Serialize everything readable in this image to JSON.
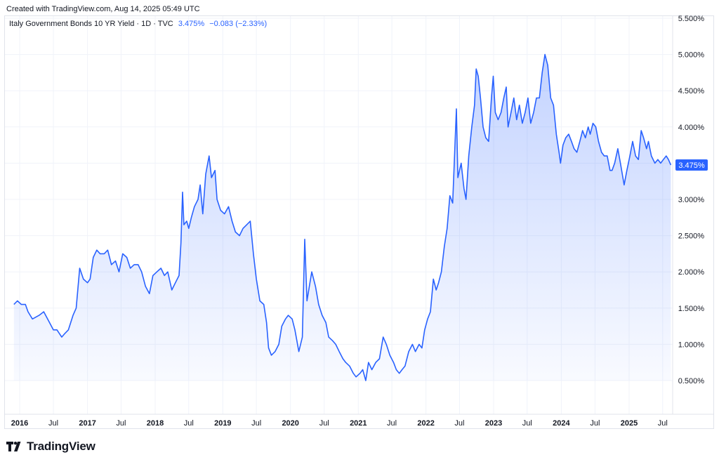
{
  "header": {
    "created": "Created with TradingView.com, Aug 14, 2025 05:49 UTC"
  },
  "legend": {
    "symbol": "Italy Government Bonds 10 YR Yield · 1D · TVC",
    "last": "3.475%",
    "change": "−0.083 (−2.33%)"
  },
  "brand": {
    "name": "TradingView",
    "icon": "tradingview-logo-icon"
  },
  "colors": {
    "line": "#2962ff",
    "badge": "#2962ff",
    "fill_top": "#c9d6ff"
  },
  "chart_data": {
    "type": "area",
    "title": "Italy Government Bonds 10 YR Yield · 1D · TVC",
    "ylabel": "",
    "xlabel": "",
    "y_unit": "%",
    "ylim": [
      0.5,
      5.5
    ],
    "x_range": [
      "2015-12-01",
      "2025-08-14"
    ],
    "y_ticks": [
      "0.500%",
      "1.000%",
      "1.500%",
      "2.000%",
      "2.500%",
      "3.000%",
      "3.500%",
      "4.000%",
      "4.500%",
      "5.000%",
      "5.500%"
    ],
    "x_ticks": [
      {
        "label": "2016",
        "date": "2016-01-01",
        "bold": true
      },
      {
        "label": "Jul",
        "date": "2016-07-01",
        "bold": false
      },
      {
        "label": "2017",
        "date": "2017-01-01",
        "bold": true
      },
      {
        "label": "Jul",
        "date": "2017-07-01",
        "bold": false
      },
      {
        "label": "2018",
        "date": "2018-01-01",
        "bold": true
      },
      {
        "label": "Jul",
        "date": "2018-07-01",
        "bold": false
      },
      {
        "label": "2019",
        "date": "2019-01-01",
        "bold": true
      },
      {
        "label": "Jul",
        "date": "2019-07-01",
        "bold": false
      },
      {
        "label": "2020",
        "date": "2020-01-01",
        "bold": true
      },
      {
        "label": "Jul",
        "date": "2020-07-01",
        "bold": false
      },
      {
        "label": "2021",
        "date": "2021-01-01",
        "bold": true
      },
      {
        "label": "Jul",
        "date": "2021-07-01",
        "bold": false
      },
      {
        "label": "2022",
        "date": "2022-01-01",
        "bold": true
      },
      {
        "label": "Jul",
        "date": "2022-07-01",
        "bold": false
      },
      {
        "label": "2023",
        "date": "2023-01-01",
        "bold": true
      },
      {
        "label": "Jul",
        "date": "2023-07-01",
        "bold": false
      },
      {
        "label": "2024",
        "date": "2024-01-01",
        "bold": true
      },
      {
        "label": "Jul",
        "date": "2024-07-01",
        "bold": false
      },
      {
        "label": "2025",
        "date": "2025-01-01",
        "bold": true
      },
      {
        "label": "Jul",
        "date": "2025-07-01",
        "bold": false
      }
    ],
    "last_value_label": "3.475%",
    "grid": true,
    "series": [
      {
        "points": [
          [
            "2015-12-01",
            1.55
          ],
          [
            "2015-12-20",
            1.6
          ],
          [
            "2016-01-10",
            1.55
          ],
          [
            "2016-02-01",
            1.55
          ],
          [
            "2016-02-15",
            1.45
          ],
          [
            "2016-03-10",
            1.35
          ],
          [
            "2016-04-15",
            1.4
          ],
          [
            "2016-05-10",
            1.45
          ],
          [
            "2016-06-10",
            1.3
          ],
          [
            "2016-07-01",
            1.2
          ],
          [
            "2016-07-20",
            1.2
          ],
          [
            "2016-08-15",
            1.1
          ],
          [
            "2016-09-01",
            1.15
          ],
          [
            "2016-09-20",
            1.2
          ],
          [
            "2016-10-15",
            1.4
          ],
          [
            "2016-11-01",
            1.5
          ],
          [
            "2016-11-20",
            2.05
          ],
          [
            "2016-12-10",
            1.9
          ],
          [
            "2017-01-01",
            1.85
          ],
          [
            "2017-01-15",
            1.9
          ],
          [
            "2017-02-01",
            2.2
          ],
          [
            "2017-02-20",
            2.3
          ],
          [
            "2017-03-10",
            2.25
          ],
          [
            "2017-04-01",
            2.25
          ],
          [
            "2017-04-20",
            2.3
          ],
          [
            "2017-05-10",
            2.1
          ],
          [
            "2017-06-01",
            2.15
          ],
          [
            "2017-06-20",
            2.0
          ],
          [
            "2017-07-10",
            2.25
          ],
          [
            "2017-08-01",
            2.2
          ],
          [
            "2017-08-20",
            2.05
          ],
          [
            "2017-09-10",
            2.1
          ],
          [
            "2017-10-01",
            2.1
          ],
          [
            "2017-10-20",
            2.0
          ],
          [
            "2017-11-10",
            1.8
          ],
          [
            "2017-12-01",
            1.7
          ],
          [
            "2017-12-20",
            1.95
          ],
          [
            "2018-01-10",
            2.0
          ],
          [
            "2018-02-01",
            2.05
          ],
          [
            "2018-02-20",
            1.95
          ],
          [
            "2018-03-10",
            2.0
          ],
          [
            "2018-04-01",
            1.75
          ],
          [
            "2018-04-20",
            1.85
          ],
          [
            "2018-05-10",
            1.95
          ],
          [
            "2018-05-20",
            2.4
          ],
          [
            "2018-05-29",
            3.1
          ],
          [
            "2018-06-05",
            2.65
          ],
          [
            "2018-06-20",
            2.7
          ],
          [
            "2018-07-01",
            2.6
          ],
          [
            "2018-07-15",
            2.75
          ],
          [
            "2018-08-01",
            2.9
          ],
          [
            "2018-08-20",
            3.0
          ],
          [
            "2018-09-01",
            3.2
          ],
          [
            "2018-09-15",
            2.8
          ],
          [
            "2018-10-01",
            3.35
          ],
          [
            "2018-10-19",
            3.6
          ],
          [
            "2018-11-01",
            3.3
          ],
          [
            "2018-11-20",
            3.4
          ],
          [
            "2018-12-01",
            3.0
          ],
          [
            "2018-12-20",
            2.85
          ],
          [
            "2019-01-10",
            2.8
          ],
          [
            "2019-02-01",
            2.9
          ],
          [
            "2019-02-20",
            2.7
          ],
          [
            "2019-03-10",
            2.55
          ],
          [
            "2019-04-01",
            2.5
          ],
          [
            "2019-04-20",
            2.6
          ],
          [
            "2019-05-10",
            2.65
          ],
          [
            "2019-05-29",
            2.7
          ],
          [
            "2019-06-15",
            2.25
          ],
          [
            "2019-07-01",
            1.9
          ],
          [
            "2019-07-20",
            1.6
          ],
          [
            "2019-08-10",
            1.55
          ],
          [
            "2019-08-25",
            1.3
          ],
          [
            "2019-09-05",
            0.95
          ],
          [
            "2019-09-20",
            0.85
          ],
          [
            "2019-10-10",
            0.9
          ],
          [
            "2019-10-30",
            1.0
          ],
          [
            "2019-11-15",
            1.25
          ],
          [
            "2019-12-05",
            1.35
          ],
          [
            "2019-12-20",
            1.4
          ],
          [
            "2020-01-10",
            1.35
          ],
          [
            "2020-01-25",
            1.2
          ],
          [
            "2020-02-15",
            0.9
          ],
          [
            "2020-03-05",
            1.1
          ],
          [
            "2020-03-18",
            2.45
          ],
          [
            "2020-03-30",
            1.6
          ],
          [
            "2020-04-15",
            1.85
          ],
          [
            "2020-04-25",
            2.0
          ],
          [
            "2020-05-15",
            1.8
          ],
          [
            "2020-06-01",
            1.55
          ],
          [
            "2020-06-20",
            1.4
          ],
          [
            "2020-07-10",
            1.3
          ],
          [
            "2020-07-25",
            1.1
          ],
          [
            "2020-08-15",
            1.05
          ],
          [
            "2020-09-01",
            1.0
          ],
          [
            "2020-09-20",
            0.9
          ],
          [
            "2020-10-10",
            0.8
          ],
          [
            "2020-10-25",
            0.75
          ],
          [
            "2020-11-15",
            0.7
          ],
          [
            "2020-12-05",
            0.6
          ],
          [
            "2020-12-20",
            0.55
          ],
          [
            "2021-01-10",
            0.6
          ],
          [
            "2021-01-25",
            0.65
          ],
          [
            "2021-02-10",
            0.5
          ],
          [
            "2021-02-25",
            0.75
          ],
          [
            "2021-03-15",
            0.65
          ],
          [
            "2021-04-05",
            0.75
          ],
          [
            "2021-04-25",
            0.8
          ],
          [
            "2021-05-15",
            1.1
          ],
          [
            "2021-06-01",
            1.0
          ],
          [
            "2021-06-20",
            0.85
          ],
          [
            "2021-07-10",
            0.75
          ],
          [
            "2021-07-25",
            0.65
          ],
          [
            "2021-08-10",
            0.6
          ],
          [
            "2021-08-25",
            0.65
          ],
          [
            "2021-09-10",
            0.7
          ],
          [
            "2021-09-30",
            0.9
          ],
          [
            "2021-10-20",
            1.0
          ],
          [
            "2021-11-05",
            0.9
          ],
          [
            "2021-11-25",
            1.0
          ],
          [
            "2021-12-10",
            0.95
          ],
          [
            "2021-12-25",
            1.2
          ],
          [
            "2022-01-10",
            1.35
          ],
          [
            "2022-01-25",
            1.45
          ],
          [
            "2022-02-10",
            1.9
          ],
          [
            "2022-02-25",
            1.75
          ],
          [
            "2022-03-10",
            1.85
          ],
          [
            "2022-03-25",
            2.0
          ],
          [
            "2022-04-10",
            2.35
          ],
          [
            "2022-04-25",
            2.6
          ],
          [
            "2022-05-10",
            3.05
          ],
          [
            "2022-05-25",
            2.95
          ],
          [
            "2022-06-14",
            4.25
          ],
          [
            "2022-06-22",
            3.3
          ],
          [
            "2022-07-10",
            3.5
          ],
          [
            "2022-07-25",
            3.15
          ],
          [
            "2022-08-05",
            3.0
          ],
          [
            "2022-08-20",
            3.6
          ],
          [
            "2022-09-05",
            4.0
          ],
          [
            "2022-09-20",
            4.3
          ],
          [
            "2022-09-29",
            4.8
          ],
          [
            "2022-10-10",
            4.7
          ],
          [
            "2022-10-22",
            4.4
          ],
          [
            "2022-11-05",
            4.0
          ],
          [
            "2022-11-20",
            3.85
          ],
          [
            "2022-12-05",
            3.8
          ],
          [
            "2022-12-20",
            4.4
          ],
          [
            "2022-12-30",
            4.7
          ],
          [
            "2023-01-10",
            4.2
          ],
          [
            "2023-01-25",
            4.1
          ],
          [
            "2023-02-10",
            4.2
          ],
          [
            "2023-02-25",
            4.4
          ],
          [
            "2023-03-10",
            4.55
          ],
          [
            "2023-03-20",
            4.0
          ],
          [
            "2023-04-05",
            4.2
          ],
          [
            "2023-04-20",
            4.4
          ],
          [
            "2023-05-05",
            4.1
          ],
          [
            "2023-05-20",
            4.3
          ],
          [
            "2023-06-05",
            4.05
          ],
          [
            "2023-06-20",
            4.2
          ],
          [
            "2023-07-05",
            4.4
          ],
          [
            "2023-07-20",
            4.05
          ],
          [
            "2023-08-05",
            4.2
          ],
          [
            "2023-08-20",
            4.4
          ],
          [
            "2023-09-05",
            4.4
          ],
          [
            "2023-09-20",
            4.75
          ],
          [
            "2023-10-05",
            5.0
          ],
          [
            "2023-10-20",
            4.85
          ],
          [
            "2023-11-05",
            4.4
          ],
          [
            "2023-11-20",
            4.3
          ],
          [
            "2023-12-05",
            3.9
          ],
          [
            "2023-12-20",
            3.65
          ],
          [
            "2023-12-28",
            3.5
          ],
          [
            "2024-01-10",
            3.75
          ],
          [
            "2024-01-25",
            3.85
          ],
          [
            "2024-02-10",
            3.9
          ],
          [
            "2024-02-25",
            3.8
          ],
          [
            "2024-03-10",
            3.7
          ],
          [
            "2024-03-25",
            3.65
          ],
          [
            "2024-04-10",
            3.8
          ],
          [
            "2024-04-25",
            3.95
          ],
          [
            "2024-05-10",
            3.85
          ],
          [
            "2024-05-25",
            4.0
          ],
          [
            "2024-06-05",
            3.9
          ],
          [
            "2024-06-20",
            4.05
          ],
          [
            "2024-07-05",
            4.0
          ],
          [
            "2024-07-20",
            3.8
          ],
          [
            "2024-08-05",
            3.65
          ],
          [
            "2024-08-20",
            3.6
          ],
          [
            "2024-09-05",
            3.6
          ],
          [
            "2024-09-20",
            3.4
          ],
          [
            "2024-10-01",
            3.4
          ],
          [
            "2024-10-15",
            3.5
          ],
          [
            "2024-11-01",
            3.7
          ],
          [
            "2024-11-15",
            3.5
          ],
          [
            "2024-12-05",
            3.2
          ],
          [
            "2024-12-20",
            3.4
          ],
          [
            "2025-01-05",
            3.6
          ],
          [
            "2025-01-20",
            3.8
          ],
          [
            "2025-02-05",
            3.6
          ],
          [
            "2025-02-20",
            3.55
          ],
          [
            "2025-03-07",
            3.95
          ],
          [
            "2025-03-20",
            3.85
          ],
          [
            "2025-04-05",
            3.7
          ],
          [
            "2025-04-15",
            3.8
          ],
          [
            "2025-05-01",
            3.6
          ],
          [
            "2025-05-20",
            3.5
          ],
          [
            "2025-06-05",
            3.55
          ],
          [
            "2025-06-20",
            3.5
          ],
          [
            "2025-07-05",
            3.55
          ],
          [
            "2025-07-20",
            3.6
          ],
          [
            "2025-08-01",
            3.55
          ],
          [
            "2025-08-14",
            3.475
          ]
        ]
      }
    ]
  }
}
